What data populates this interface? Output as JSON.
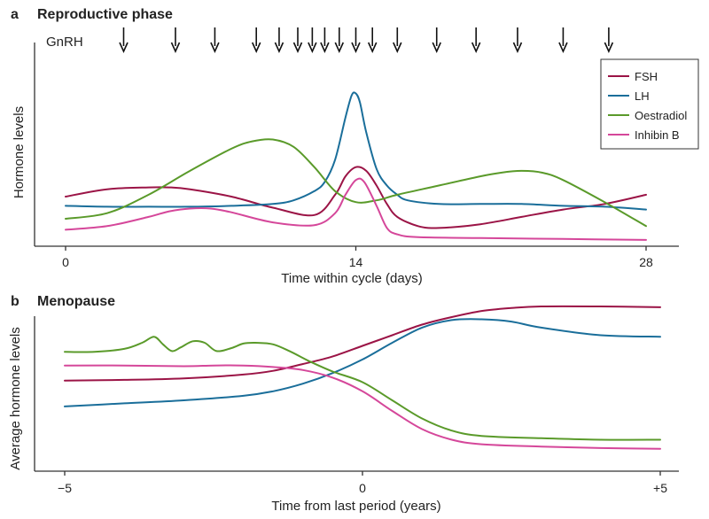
{
  "colors": {
    "FSH": "#9b1446",
    "LH": "#1a6e9a",
    "Oestradiol": "#5a9a2a",
    "Inhibin B": "#d5479a",
    "axis": "#333333"
  },
  "chart_data": [
    {
      "panel": "a",
      "type": "line",
      "title": "Reproductive phase",
      "xlabel": "Time within cycle (days)",
      "ylabel": "Hormone levels",
      "xlim": [
        -1,
        29.5
      ],
      "ylim": [
        0,
        10
      ],
      "xticks": [
        0,
        14,
        28
      ],
      "xtick_labels": [
        "0",
        "14",
        "28"
      ],
      "grid": false,
      "legend": {
        "position": "top-right",
        "entries": [
          "FSH",
          "LH",
          "Oestradiol",
          "Inhibin B"
        ]
      },
      "gnrh": {
        "label": "GnRH",
        "pulse_days": [
          2.8,
          5.3,
          7.2,
          9.2,
          10.3,
          11.2,
          11.9,
          12.5,
          13.2,
          14.0,
          14.8,
          16.0,
          17.9,
          19.8,
          21.8,
          24.0,
          26.2
        ]
      },
      "series": [
        {
          "name": "FSH",
          "x": [
            0,
            2,
            4,
            5,
            6,
            8,
            10,
            12,
            13,
            13.5,
            14,
            14.5,
            15,
            15.5,
            16,
            17,
            18,
            20,
            22,
            24,
            26,
            28
          ],
          "y": [
            2.5,
            2.9,
            3.0,
            3.0,
            2.9,
            2.5,
            1.9,
            1.5,
            2.6,
            3.6,
            4.1,
            3.9,
            3.1,
            2.1,
            1.4,
            0.9,
            0.8,
            1.0,
            1.4,
            1.8,
            2.1,
            2.6
          ]
        },
        {
          "name": "LH",
          "x": [
            0,
            2,
            4,
            6,
            8,
            10,
            11,
            12,
            12.5,
            13,
            13.5,
            13.8,
            14,
            14.2,
            14.5,
            15,
            15.5,
            16,
            16.5,
            18,
            20,
            22,
            24,
            26,
            28
          ],
          "y": [
            2.0,
            1.95,
            1.95,
            1.95,
            2.0,
            2.1,
            2.3,
            2.8,
            3.3,
            4.5,
            6.8,
            8.0,
            8.1,
            7.6,
            6.0,
            4.0,
            3.1,
            2.6,
            2.3,
            2.1,
            2.1,
            2.1,
            2.0,
            1.95,
            1.8
          ]
        },
        {
          "name": "Oestradiol",
          "x": [
            0,
            2,
            4,
            6,
            8,
            9,
            10,
            11,
            12,
            13,
            14,
            15,
            16,
            18,
            20,
            21,
            22,
            23,
            24,
            26,
            28
          ],
          "y": [
            1.3,
            1.6,
            2.6,
            3.9,
            5.1,
            5.5,
            5.6,
            5.2,
            4.1,
            2.8,
            2.2,
            2.3,
            2.6,
            3.1,
            3.6,
            3.8,
            3.9,
            3.8,
            3.4,
            2.2,
            0.9
          ]
        },
        {
          "name": "Inhibin B",
          "x": [
            0,
            2,
            4,
            5,
            6,
            7,
            8,
            10,
            12,
            13,
            13.5,
            14,
            14.4,
            15,
            15.5,
            16,
            17,
            20,
            24,
            28
          ],
          "y": [
            0.7,
            0.9,
            1.4,
            1.7,
            1.85,
            1.85,
            1.65,
            1.1,
            0.95,
            1.6,
            2.6,
            3.4,
            3.3,
            2.0,
            0.8,
            0.45,
            0.3,
            0.25,
            0.2,
            0.15
          ]
        }
      ]
    },
    {
      "panel": "b",
      "type": "line",
      "title": "Menopause",
      "xlabel": "Time from last period (years)",
      "ylabel": "Average hormone levels",
      "xlim": [
        -5.4,
        5.4
      ],
      "ylim": [
        0,
        10
      ],
      "xticks": [
        -5,
        0,
        5
      ],
      "xtick_labels": [
        "−5",
        "0",
        "+5"
      ],
      "grid": false,
      "series": [
        {
          "name": "FSH",
          "x": [
            -5,
            -4,
            -3,
            -2,
            -1.5,
            -1,
            -0.5,
            0,
            0.5,
            1,
            1.5,
            2,
            2.5,
            3,
            4,
            5
          ],
          "y": [
            5.1,
            5.15,
            5.25,
            5.5,
            5.75,
            6.2,
            6.7,
            7.4,
            8.1,
            8.8,
            9.3,
            9.7,
            9.9,
            10.0,
            10.0,
            9.95
          ]
        },
        {
          "name": "LH",
          "x": [
            -5,
            -4,
            -3,
            -2,
            -1.5,
            -1,
            -0.5,
            0,
            0.5,
            1,
            1.5,
            2,
            2.5,
            3,
            4,
            5
          ],
          "y": [
            3.4,
            3.6,
            3.8,
            4.1,
            4.4,
            4.9,
            5.6,
            6.5,
            7.6,
            8.6,
            9.1,
            9.15,
            9.0,
            8.6,
            8.1,
            8.0
          ]
        },
        {
          "name": "Oestradiol",
          "x": [
            -5,
            -4.5,
            -4,
            -3.7,
            -3.5,
            -3.35,
            -3.2,
            -3.05,
            -2.85,
            -2.65,
            -2.45,
            -2.2,
            -2.0,
            -1.8,
            -1.5,
            -1.2,
            -0.9,
            -0.5,
            0,
            0.5,
            1,
            1.5,
            2,
            3,
            4,
            5
          ],
          "y": [
            7.0,
            7.0,
            7.2,
            7.6,
            8.0,
            7.5,
            7.05,
            7.3,
            7.7,
            7.6,
            7.05,
            7.25,
            7.55,
            7.6,
            7.5,
            7.0,
            6.4,
            5.7,
            5.0,
            3.8,
            2.6,
            1.8,
            1.45,
            1.3,
            1.2,
            1.2
          ]
        },
        {
          "name": "Inhibin B",
          "x": [
            -5,
            -4,
            -3,
            -2.5,
            -2,
            -1.5,
            -1,
            -0.5,
            0,
            0.5,
            1,
            1.5,
            2,
            3,
            4,
            5
          ],
          "y": [
            6.1,
            6.1,
            6.05,
            6.1,
            6.1,
            6.0,
            5.8,
            5.3,
            4.4,
            3.1,
            1.9,
            1.2,
            0.9,
            0.75,
            0.65,
            0.6
          ]
        }
      ]
    }
  ]
}
